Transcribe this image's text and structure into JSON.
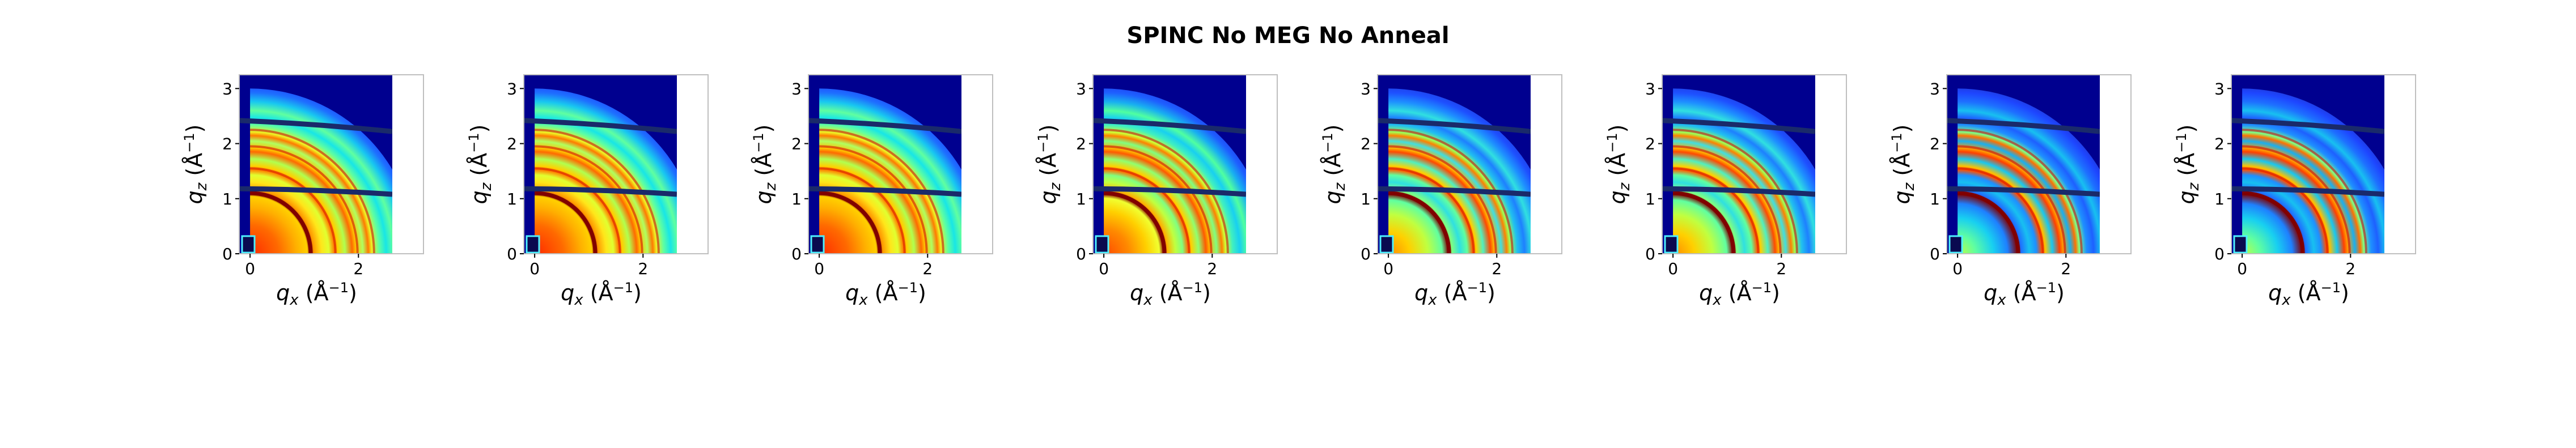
{
  "figure": {
    "title": "SPINC No MEG No Anneal"
  },
  "chart_data": [
    {
      "type": "heatmap",
      "panel": 1,
      "xlabel": "q_x (Å^-1)",
      "ylabel": "q_z (Å^-1)",
      "xlim": [
        -0.2,
        3.2
      ],
      "ylim": [
        0,
        3.25
      ],
      "x_ticks": [
        "0",
        "2"
      ],
      "y_ticks": [
        "0",
        "1",
        "2",
        "3"
      ],
      "colormap": "jet",
      "strong_ring_q": [
        1.1,
        1.55,
        1.95,
        2.25
      ],
      "intensity": "high"
    },
    {
      "type": "heatmap",
      "panel": 2,
      "xlabel": "q_x (Å^-1)",
      "ylabel": "q_z (Å^-1)",
      "xlim": [
        -0.2,
        3.2
      ],
      "ylim": [
        0,
        3.25
      ],
      "x_ticks": [
        "0",
        "2"
      ],
      "y_ticks": [
        "0",
        "1",
        "2",
        "3"
      ],
      "colormap": "jet",
      "strong_ring_q": [
        1.1,
        1.55,
        1.95,
        2.25
      ],
      "intensity": "high"
    },
    {
      "type": "heatmap",
      "panel": 3,
      "xlabel": "q_x (Å^-1)",
      "ylabel": "q_z (Å^-1)",
      "xlim": [
        -0.2,
        3.2
      ],
      "ylim": [
        0,
        3.25
      ],
      "x_ticks": [
        "0",
        "2"
      ],
      "y_ticks": [
        "0",
        "1",
        "2",
        "3"
      ],
      "colormap": "jet",
      "strong_ring_q": [
        1.1,
        1.55,
        1.95,
        2.25
      ],
      "intensity": "high"
    },
    {
      "type": "heatmap",
      "panel": 4,
      "xlabel": "q_x (Å^-1)",
      "ylabel": "q_z (Å^-1)",
      "xlim": [
        -0.2,
        3.2
      ],
      "ylim": [
        0,
        3.25
      ],
      "x_ticks": [
        "0",
        "2"
      ],
      "y_ticks": [
        "0",
        "1",
        "2",
        "3"
      ],
      "colormap": "jet",
      "strong_ring_q": [
        1.1,
        1.55,
        1.95,
        2.25
      ],
      "intensity": "medium-high"
    },
    {
      "type": "heatmap",
      "panel": 5,
      "xlabel": "q_x (Å^-1)",
      "ylabel": "q_z (Å^-1)",
      "xlim": [
        -0.2,
        3.2
      ],
      "ylim": [
        0,
        3.25
      ],
      "x_ticks": [
        "0",
        "2"
      ],
      "y_ticks": [
        "0",
        "1",
        "2",
        "3"
      ],
      "colormap": "jet",
      "strong_ring_q": [
        1.1,
        1.55,
        1.95,
        2.25
      ],
      "intensity": "medium"
    },
    {
      "type": "heatmap",
      "panel": 6,
      "xlabel": "q_x (Å^-1)",
      "ylabel": "q_z (Å^-1)",
      "xlim": [
        -0.2,
        3.2
      ],
      "ylim": [
        0,
        3.25
      ],
      "x_ticks": [
        "0",
        "2"
      ],
      "y_ticks": [
        "0",
        "1",
        "2",
        "3"
      ],
      "colormap": "jet",
      "strong_ring_q": [
        1.1,
        1.55,
        1.95,
        2.25
      ],
      "intensity": "medium"
    },
    {
      "type": "heatmap",
      "panel": 7,
      "xlabel": "q_x (Å^-1)",
      "ylabel": "q_z (Å^-1)",
      "xlim": [
        -0.2,
        3.2
      ],
      "ylim": [
        0,
        3.25
      ],
      "x_ticks": [
        "0",
        "2"
      ],
      "y_ticks": [
        "0",
        "1",
        "2",
        "3"
      ],
      "colormap": "jet",
      "strong_ring_q": [
        1.1,
        1.55,
        1.95,
        2.25
      ],
      "intensity": "low"
    },
    {
      "type": "heatmap",
      "panel": 8,
      "xlabel": "q_x (Å^-1)",
      "ylabel": "q_z (Å^-1)",
      "xlim": [
        -0.2,
        3.2
      ],
      "ylim": [
        0,
        3.25
      ],
      "x_ticks": [
        "0",
        "2"
      ],
      "y_ticks": [
        "0",
        "1",
        "2",
        "3"
      ],
      "colormap": "jet",
      "strong_ring_q": [
        1.1,
        1.55,
        1.95,
        2.25
      ],
      "intensity": "low"
    }
  ],
  "colors": {
    "background_dark": "#00008f",
    "blue": "#1e46ff",
    "cyan": "#18e6e6",
    "green": "#80ff80",
    "yellow": "#ffe61a",
    "orange": "#ff8000",
    "red": "#d40000",
    "dark_red": "#800000",
    "detector_gap": "#1a2a6a",
    "beamstop": "#0a0a50",
    "beamstop_border": "#4df0ff",
    "axes_frame": "#bfbfbf"
  }
}
